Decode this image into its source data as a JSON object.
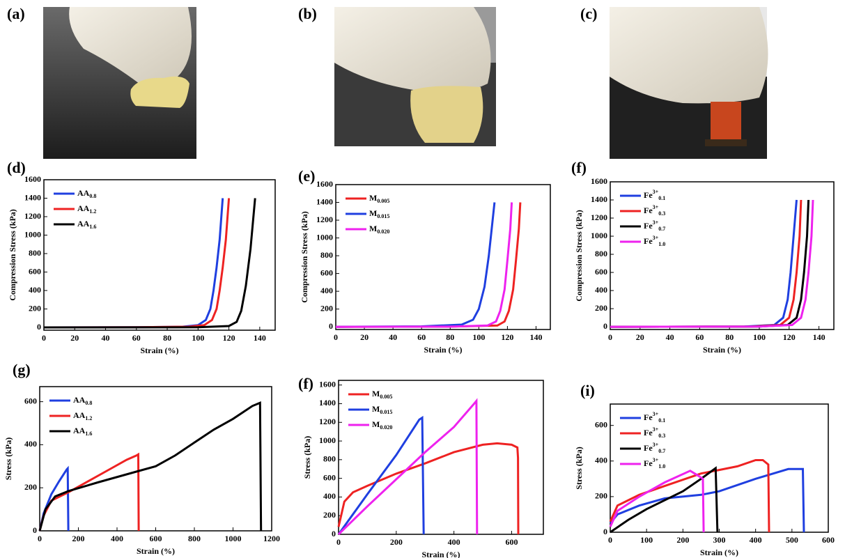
{
  "photos": [
    {
      "label": "(a)"
    },
    {
      "label": "(b)"
    },
    {
      "label": "(c)"
    }
  ],
  "chart_data": [
    {
      "type": "line",
      "label": "(d)",
      "xlabel": "Strain (%)",
      "ylabel": "Compression Stress (kPa)",
      "xlim": [
        0,
        150
      ],
      "ylim": [
        -30,
        1600
      ],
      "xticks": [
        0,
        20,
        40,
        60,
        80,
        100,
        120,
        140
      ],
      "yticks": [
        0,
        200,
        400,
        600,
        800,
        1000,
        1200,
        1400,
        1600
      ],
      "series": [
        {
          "name": "AA0.8",
          "color": "#1f3fe0",
          "x": [
            0,
            60,
            90,
            100,
            105,
            108,
            110,
            112,
            114,
            116
          ],
          "values": [
            0,
            2,
            8,
            25,
            80,
            200,
            400,
            650,
            950,
            1400
          ]
        },
        {
          "name": "AA1.2",
          "color": "#ee2222",
          "x": [
            0,
            60,
            94,
            104,
            109,
            112,
            114,
            116,
            118,
            120
          ],
          "values": [
            0,
            2,
            8,
            25,
            80,
            200,
            400,
            650,
            950,
            1400
          ]
        },
        {
          "name": "AA1.6",
          "color": "#000000",
          "x": [
            0,
            100,
            120,
            125,
            128,
            131,
            134,
            137
          ],
          "values": [
            0,
            2,
            15,
            60,
            180,
            450,
            850,
            1400
          ]
        }
      ]
    },
    {
      "type": "line",
      "label": "(e)",
      "xlabel": "Strain (%)",
      "ylabel": "Compression Stress (kPa)",
      "xlim": [
        0,
        150
      ],
      "ylim": [
        -30,
        1600
      ],
      "xticks": [
        0,
        20,
        40,
        60,
        80,
        100,
        120,
        140
      ],
      "yticks": [
        0,
        200,
        400,
        600,
        800,
        1000,
        1200,
        1400,
        1600
      ],
      "series": [
        {
          "name": "M0.005",
          "color": "#ee2222",
          "x": [
            0,
            80,
            113,
            118,
            121,
            124,
            126,
            128,
            129
          ],
          "values": [
            0,
            2,
            15,
            60,
            180,
            420,
            750,
            1100,
            1400
          ]
        },
        {
          "name": "M0.015",
          "color": "#1f3fe0",
          "x": [
            0,
            60,
            88,
            96,
            100,
            104,
            107,
            109,
            111
          ],
          "values": [
            0,
            5,
            25,
            80,
            200,
            450,
            800,
            1100,
            1400
          ]
        },
        {
          "name": "M0.020",
          "color": "#ee22ee",
          "x": [
            0,
            80,
            106,
            112,
            115,
            118,
            120,
            122,
            123
          ],
          "values": [
            0,
            2,
            15,
            60,
            180,
            420,
            750,
            1100,
            1400
          ]
        }
      ]
    },
    {
      "type": "line",
      "label": "(f)",
      "xlabel": "Strain (%)",
      "ylabel": "Compression Stress (kPa)",
      "xlim": [
        0,
        150
      ],
      "ylim": [
        -30,
        1600
      ],
      "xticks": [
        0,
        20,
        40,
        60,
        80,
        100,
        120,
        140
      ],
      "yticks": [
        0,
        200,
        400,
        600,
        800,
        1000,
        1200,
        1400,
        1600
      ],
      "series": [
        {
          "name": "Fe3+0.1",
          "color": "#1f3fe0",
          "x": [
            0,
            90,
            110,
            116,
            119,
            121,
            123,
            125
          ],
          "values": [
            0,
            2,
            20,
            100,
            300,
            600,
            1000,
            1400
          ]
        },
        {
          "name": "Fe3+0.3",
          "color": "#ee2222",
          "x": [
            0,
            95,
            114,
            120,
            123,
            125,
            127,
            128
          ],
          "values": [
            0,
            2,
            20,
            100,
            300,
            600,
            1000,
            1400
          ]
        },
        {
          "name": "Fe3+0.7",
          "color": "#000000",
          "x": [
            0,
            100,
            119,
            125,
            128,
            130,
            132,
            133
          ],
          "values": [
            0,
            2,
            20,
            100,
            300,
            600,
            1000,
            1400
          ]
        },
        {
          "name": "Fe3+1.0",
          "color": "#ee22ee",
          "x": [
            0,
            100,
            122,
            128,
            131,
            133,
            135,
            136
          ],
          "values": [
            0,
            2,
            20,
            100,
            300,
            600,
            1000,
            1400
          ]
        }
      ]
    },
    {
      "type": "line",
      "label": "(g)",
      "xlabel": "Strain (%)",
      "ylabel": "Stress (kPa)",
      "xlim": [
        0,
        1200
      ],
      "ylim": [
        0,
        670
      ],
      "xticks": [
        0,
        200,
        400,
        600,
        800,
        1000,
        1200
      ],
      "yticks": [
        0,
        200,
        400,
        600
      ],
      "series": [
        {
          "name": "AA0.8",
          "color": "#1f3fe0",
          "x": [
            0,
            20,
            60,
            100,
            140,
            145,
            148
          ],
          "values": [
            0,
            80,
            170,
            230,
            285,
            290,
            0
          ]
        },
        {
          "name": "AA1.2",
          "color": "#ee2222",
          "x": [
            0,
            20,
            60,
            150,
            250,
            350,
            450,
            500,
            510,
            512
          ],
          "values": [
            0,
            70,
            140,
            180,
            230,
            280,
            330,
            350,
            355,
            0
          ]
        },
        {
          "name": "AA1.6",
          "color": "#000000",
          "x": [
            0,
            30,
            80,
            150,
            300,
            500,
            600,
            700,
            800,
            900,
            1000,
            1100,
            1140,
            1145
          ],
          "values": [
            0,
            100,
            160,
            185,
            225,
            275,
            300,
            350,
            410,
            470,
            520,
            580,
            595,
            0
          ]
        }
      ]
    },
    {
      "type": "line",
      "label": "(f)",
      "xlabel": "Strain (%)",
      "ylabel": "Stress (kPa)",
      "xlim": [
        0,
        710
      ],
      "ylim": [
        0,
        1650
      ],
      "xticks": [
        0,
        200,
        400,
        600
      ],
      "yticks": [
        0,
        200,
        400,
        600,
        800,
        1000,
        1200,
        1400,
        1600
      ],
      "series": [
        {
          "name": "M0.005",
          "color": "#ee2222",
          "x": [
            0,
            20,
            50,
            100,
            200,
            300,
            400,
            500,
            550,
            600,
            620,
            622,
            623
          ],
          "values": [
            80,
            350,
            450,
            520,
            650,
            760,
            880,
            960,
            975,
            960,
            930,
            820,
            0
          ]
        },
        {
          "name": "M0.015",
          "color": "#1f3fe0",
          "x": [
            0,
            100,
            200,
            280,
            290,
            295
          ],
          "values": [
            0,
            430,
            850,
            1230,
            1250,
            0
          ]
        },
        {
          "name": "M0.020",
          "color": "#ee22ee",
          "x": [
            0,
            100,
            200,
            300,
            400,
            470,
            478,
            480
          ],
          "values": [
            0,
            300,
            590,
            880,
            1150,
            1400,
            1430,
            0
          ]
        }
      ]
    },
    {
      "type": "line",
      "label": "(i)",
      "xlabel": "Strain (%)",
      "ylabel": "Stress (kPa)",
      "xlim": [
        0,
        600
      ],
      "ylim": [
        0,
        720
      ],
      "xticks": [
        0,
        100,
        200,
        300,
        400,
        500,
        600
      ],
      "yticks": [
        0,
        200,
        400,
        600
      ],
      "series": [
        {
          "name": "Fe3+0.1",
          "color": "#1f3fe0",
          "x": [
            0,
            20,
            80,
            150,
            250,
            300,
            400,
            490,
            530,
            533
          ],
          "values": [
            50,
            100,
            150,
            190,
            210,
            230,
            300,
            355,
            355,
            0
          ]
        },
        {
          "name": "Fe3+0.3",
          "color": "#ee2222",
          "x": [
            0,
            20,
            80,
            150,
            250,
            300,
            350,
            400,
            420,
            435,
            437
          ],
          "values": [
            60,
            150,
            210,
            260,
            330,
            350,
            370,
            405,
            405,
            380,
            0
          ]
        },
        {
          "name": "Fe3+0.7",
          "color": "#000000",
          "x": [
            0,
            50,
            100,
            200,
            250,
            290,
            295
          ],
          "values": [
            0,
            70,
            130,
            230,
            300,
            360,
            0
          ]
        },
        {
          "name": "Fe3+1.0",
          "color": "#ee22ee",
          "x": [
            0,
            20,
            80,
            150,
            220,
            240,
            255,
            257
          ],
          "values": [
            30,
            120,
            200,
            280,
            345,
            320,
            300,
            0
          ]
        }
      ]
    }
  ]
}
